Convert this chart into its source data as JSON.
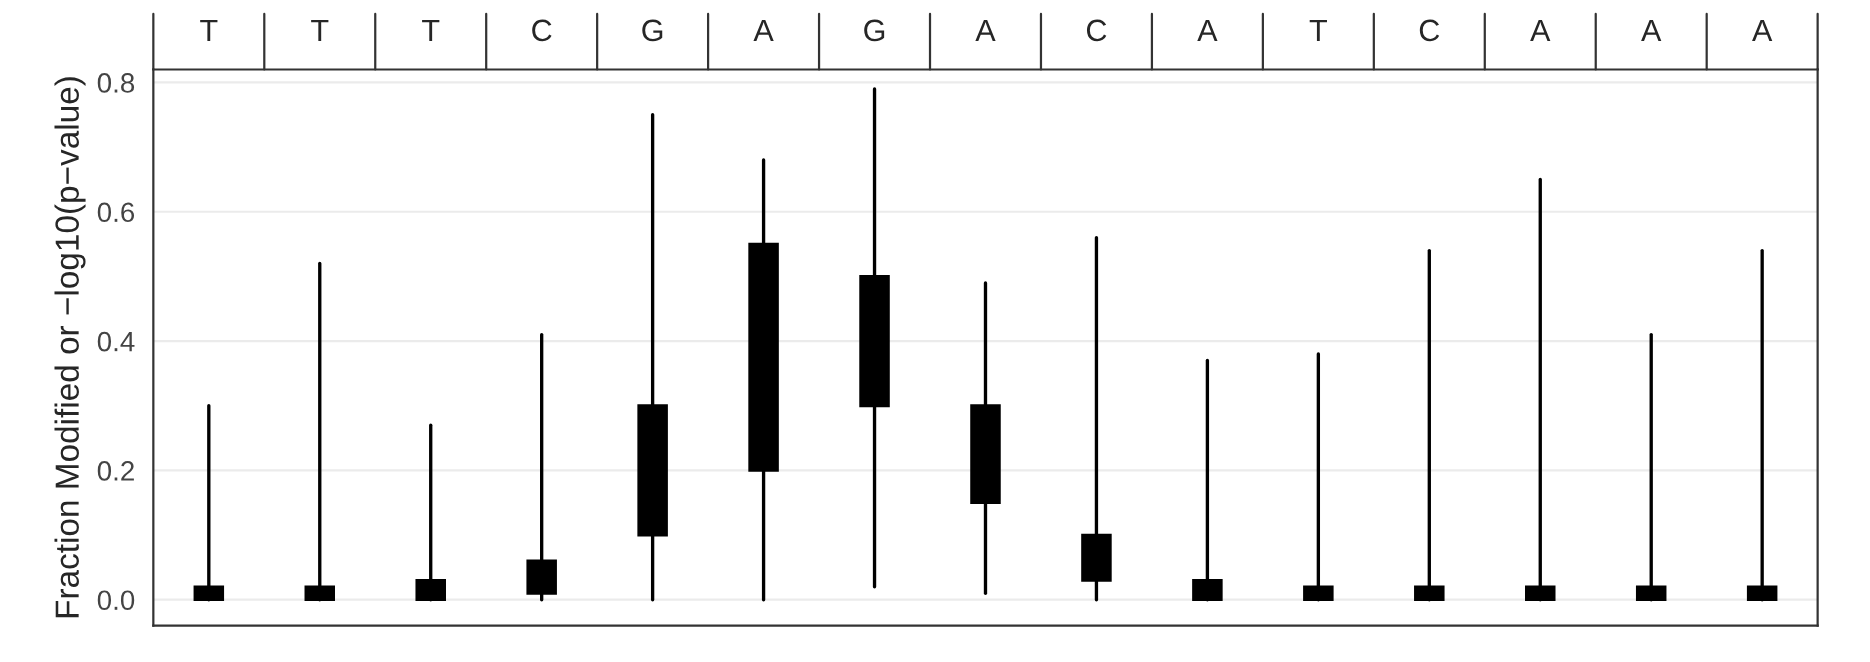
{
  "chart_data": {
    "type": "box",
    "categories": [
      "T",
      "T",
      "T",
      "C",
      "G",
      "A",
      "G",
      "A",
      "C",
      "A",
      "T",
      "C",
      "A",
      "A",
      "A"
    ],
    "ylabel": "Fraction Modified or −log10(p−value)",
    "ylim": [
      -0.04,
      0.82
    ],
    "yticks": [
      {
        "value": 0,
        "label": "0.0"
      },
      0.2,
      0.4,
      0.6,
      0.8
    ],
    "grid": "y",
    "series": [
      {
        "color": "#000000",
        "boxes": [
          {
            "low": 0,
            "q1": 0,
            "median": 0.01,
            "q3": 0.02,
            "high": 0.3
          },
          {
            "low": 0,
            "q1": 0,
            "median": 0.01,
            "q3": 0.02,
            "high": 0.52
          },
          {
            "low": 0,
            "q1": 0,
            "median": 0.01,
            "q3": 0.03,
            "high": 0.27
          },
          {
            "low": 0,
            "q1": 0.01,
            "median": 0.03,
            "q3": 0.06,
            "high": 0.41
          },
          {
            "low": 0,
            "q1": 0.1,
            "median": 0.19,
            "q3": 0.3,
            "high": 0.75
          },
          {
            "low": 0,
            "q1": 0.2,
            "median": 0.4,
            "q3": 0.55,
            "high": 0.68
          },
          {
            "low": 0.02,
            "q1": 0.3,
            "median": 0.39,
            "q3": 0.5,
            "high": 0.79
          },
          {
            "low": 0.01,
            "q1": 0.15,
            "median": 0.22,
            "q3": 0.3,
            "high": 0.49
          },
          {
            "low": 0,
            "q1": 0.03,
            "median": 0.06,
            "q3": 0.1,
            "high": 0.56
          },
          {
            "low": 0,
            "q1": 0,
            "median": 0.01,
            "q3": 0.03,
            "high": 0.37
          },
          {
            "low": 0,
            "q1": 0,
            "median": 0.01,
            "q3": 0.02,
            "high": 0.38
          },
          {
            "low": 0,
            "q1": 0,
            "median": 0.01,
            "q3": 0.02,
            "high": 0.54
          },
          {
            "low": 0,
            "q1": 0,
            "median": 0.01,
            "q3": 0.02,
            "high": 0.65
          },
          {
            "low": 0,
            "q1": 0,
            "median": 0.01,
            "q3": 0.02,
            "high": 0.41
          },
          {
            "low": 0,
            "q1": 0,
            "median": 0.01,
            "q3": 0.02,
            "high": 0.54
          }
        ]
      }
    ]
  }
}
